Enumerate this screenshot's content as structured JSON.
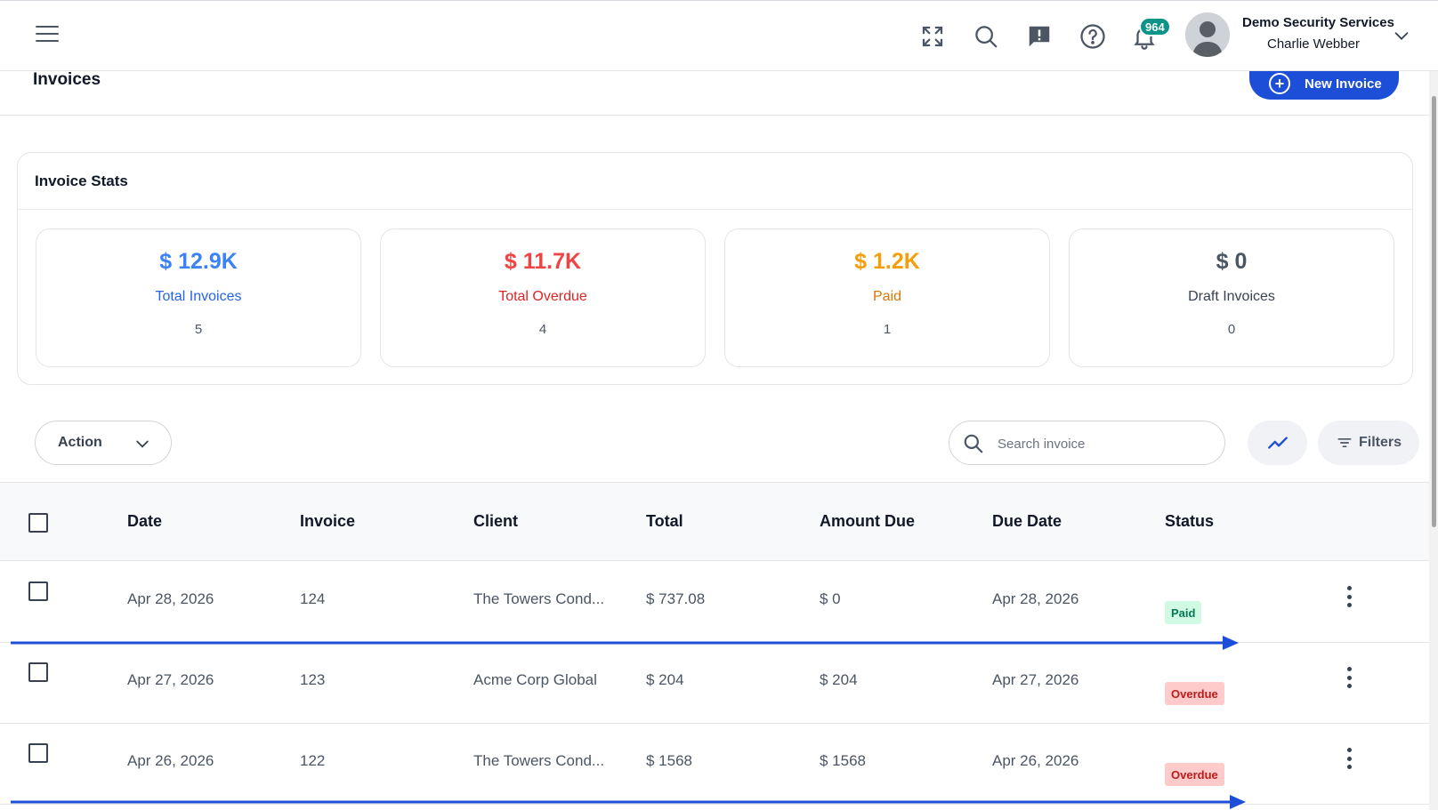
{
  "header": {
    "company": "Demo Security Services",
    "user": "Charlie Webber",
    "notification_count": "964",
    "icons": [
      "menu-icon",
      "fullscreen-icon",
      "search-icon",
      "feedback-icon",
      "help-icon",
      "bell-icon",
      "avatar",
      "chevron-down-icon"
    ]
  },
  "page": {
    "title": "Invoices",
    "new_invoice_label": "New Invoice"
  },
  "stats": {
    "title": "Invoice Stats",
    "cards": [
      {
        "amount": "$ 12.9K",
        "label": "Total Invoices",
        "count": "5",
        "color": "#3b82f6",
        "label_color": "#2563eb"
      },
      {
        "amount": "$ 11.7K",
        "label": "Total Overdue",
        "count": "4",
        "color": "#ef4444",
        "label_color": "#dc2626"
      },
      {
        "amount": "$ 1.2K",
        "label": "Paid",
        "count": "1",
        "color": "#f59e0b",
        "label_color": "#d97706"
      },
      {
        "amount": "$ 0",
        "label": "Draft Invoices",
        "count": "0",
        "color": "#4b5563",
        "label_color": "#374151"
      }
    ]
  },
  "toolbar": {
    "action_label": "Action",
    "search_placeholder": "Search invoice",
    "filters_label": "Filters"
  },
  "table": {
    "columns": [
      "Date",
      "Invoice",
      "Client",
      "Total",
      "Amount Due",
      "Due Date",
      "Status"
    ],
    "rows": [
      {
        "date": "Apr 28, 2026",
        "invoice": "124",
        "client": "The Towers Cond...",
        "total": "$ 737.08",
        "amount_due": "$ 0",
        "due_date": "Apr 28, 2026",
        "status": "Paid"
      },
      {
        "date": "Apr 27, 2026",
        "invoice": "123",
        "client": "Acme Corp Global",
        "total": "$ 204",
        "amount_due": "$ 204",
        "due_date": "Apr 27, 2026",
        "status": "Overdue"
      },
      {
        "date": "Apr 26, 2026",
        "invoice": "122",
        "client": "The Towers Cond...",
        "total": "$ 1568",
        "amount_due": "$ 1568",
        "due_date": "Apr 26, 2026",
        "status": "Overdue"
      }
    ]
  },
  "colors": {
    "primary": "#1d4ed8",
    "annotation_arrow": "#1d4ed8"
  }
}
